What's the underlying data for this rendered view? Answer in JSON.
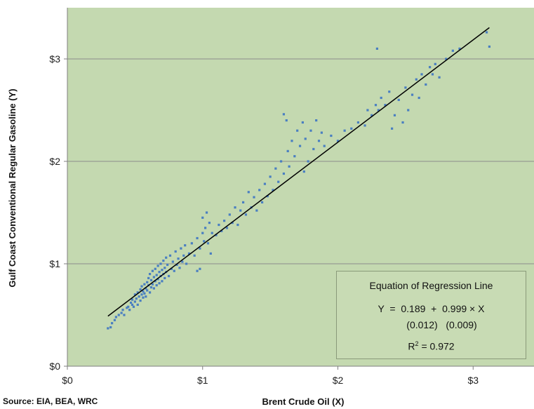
{
  "chart_data": {
    "type": "scatter",
    "title": "",
    "xlabel": "Brent Crude Oil (X)",
    "ylabel": "Gulf Coast Conventional Regular Gasoline (Y)",
    "xlim": [
      0,
      3.45
    ],
    "ylim": [
      0,
      3.5
    ],
    "x_ticks": [
      0,
      1,
      2,
      3
    ],
    "y_ticks": [
      0,
      1,
      2,
      3
    ],
    "x_tick_labels": [
      "$0",
      "$1",
      "$2",
      "$3"
    ],
    "y_tick_labels": [
      "$0",
      "$1",
      "$2",
      "$3"
    ],
    "grid": "horizontal",
    "plot_background": "#c4d9b0",
    "point_color": "#4a7fc1",
    "line_color": "#000000",
    "regression": {
      "intercept": 0.189,
      "slope": 0.999,
      "x_range": [
        0.3,
        3.12
      ]
    },
    "points": [
      [
        0.3,
        0.37
      ],
      [
        0.32,
        0.38
      ],
      [
        0.33,
        0.42
      ],
      [
        0.35,
        0.45
      ],
      [
        0.36,
        0.48
      ],
      [
        0.38,
        0.5
      ],
      [
        0.4,
        0.52
      ],
      [
        0.41,
        0.55
      ],
      [
        0.42,
        0.5
      ],
      [
        0.44,
        0.57
      ],
      [
        0.45,
        0.58
      ],
      [
        0.46,
        0.55
      ],
      [
        0.47,
        0.62
      ],
      [
        0.48,
        0.6
      ],
      [
        0.48,
        0.65
      ],
      [
        0.49,
        0.58
      ],
      [
        0.5,
        0.63
      ],
      [
        0.5,
        0.7
      ],
      [
        0.51,
        0.66
      ],
      [
        0.52,
        0.72
      ],
      [
        0.52,
        0.6
      ],
      [
        0.53,
        0.68
      ],
      [
        0.54,
        0.75
      ],
      [
        0.54,
        0.64
      ],
      [
        0.55,
        0.7
      ],
      [
        0.55,
        0.78
      ],
      [
        0.56,
        0.67
      ],
      [
        0.56,
        0.73
      ],
      [
        0.57,
        0.8
      ],
      [
        0.57,
        0.71
      ],
      [
        0.58,
        0.76
      ],
      [
        0.58,
        0.68
      ],
      [
        0.59,
        0.82
      ],
      [
        0.59,
        0.74
      ],
      [
        0.6,
        0.79
      ],
      [
        0.6,
        0.86
      ],
      [
        0.61,
        0.72
      ],
      [
        0.61,
        0.9
      ],
      [
        0.62,
        0.77
      ],
      [
        0.62,
        0.84
      ],
      [
        0.63,
        0.93
      ],
      [
        0.63,
        0.8
      ],
      [
        0.64,
        0.87
      ],
      [
        0.64,
        0.76
      ],
      [
        0.65,
        0.95
      ],
      [
        0.65,
        0.83
      ],
      [
        0.66,
        0.89
      ],
      [
        0.66,
        0.79
      ],
      [
        0.67,
        0.98
      ],
      [
        0.67,
        0.85
      ],
      [
        0.68,
        0.92
      ],
      [
        0.68,
        0.81
      ],
      [
        0.69,
        1.0
      ],
      [
        0.69,
        0.88
      ],
      [
        0.7,
        0.94
      ],
      [
        0.7,
        0.83
      ],
      [
        0.71,
        1.03
      ],
      [
        0.71,
        0.9
      ],
      [
        0.72,
        0.96
      ],
      [
        0.72,
        0.86
      ],
      [
        0.73,
        1.06
      ],
      [
        0.73,
        0.92
      ],
      [
        0.74,
        0.99
      ],
      [
        0.75,
        0.88
      ],
      [
        0.76,
        1.08
      ],
      [
        0.77,
        0.95
      ],
      [
        0.78,
        1.02
      ],
      [
        0.79,
        0.93
      ],
      [
        0.8,
        1.12
      ],
      [
        0.81,
        0.99
      ],
      [
        0.82,
        1.05
      ],
      [
        0.83,
        0.96
      ],
      [
        0.84,
        1.15
      ],
      [
        0.85,
        1.02
      ],
      [
        0.86,
        1.08
      ],
      [
        0.87,
        1.18
      ],
      [
        0.88,
        1.0
      ],
      [
        0.9,
        1.1
      ],
      [
        0.92,
        1.2
      ],
      [
        0.94,
        1.08
      ],
      [
        0.96,
        1.25
      ],
      [
        0.98,
        1.15
      ],
      [
        1.0,
        1.3
      ],
      [
        1.0,
        1.45
      ],
      [
        1.01,
        1.22
      ],
      [
        1.02,
        1.35
      ],
      [
        1.03,
        1.5
      ],
      [
        1.04,
        1.2
      ],
      [
        1.05,
        1.4
      ],
      [
        1.06,
        1.1
      ],
      [
        1.07,
        1.3
      ],
      [
        0.98,
        0.95
      ],
      [
        0.96,
        0.93
      ],
      [
        1.1,
        1.28
      ],
      [
        1.12,
        1.38
      ],
      [
        1.14,
        1.32
      ],
      [
        1.16,
        1.42
      ],
      [
        1.18,
        1.35
      ],
      [
        1.2,
        1.48
      ],
      [
        1.22,
        1.4
      ],
      [
        1.24,
        1.55
      ],
      [
        1.26,
        1.38
      ],
      [
        1.28,
        1.52
      ],
      [
        1.3,
        1.6
      ],
      [
        1.32,
        1.48
      ],
      [
        1.34,
        1.7
      ],
      [
        1.36,
        1.55
      ],
      [
        1.38,
        1.65
      ],
      [
        1.4,
        1.52
      ],
      [
        1.42,
        1.72
      ],
      [
        1.44,
        1.6
      ],
      [
        1.46,
        1.78
      ],
      [
        1.48,
        1.66
      ],
      [
        1.5,
        1.85
      ],
      [
        1.52,
        1.72
      ],
      [
        1.54,
        1.93
      ],
      [
        1.56,
        1.8
      ],
      [
        1.58,
        2.0
      ],
      [
        1.6,
        1.88
      ],
      [
        1.6,
        2.46
      ],
      [
        1.62,
        2.4
      ],
      [
        1.63,
        2.1
      ],
      [
        1.64,
        1.95
      ],
      [
        1.66,
        2.2
      ],
      [
        1.68,
        2.05
      ],
      [
        1.7,
        2.3
      ],
      [
        1.72,
        2.15
      ],
      [
        1.74,
        2.38
      ],
      [
        1.75,
        1.9
      ],
      [
        1.76,
        2.22
      ],
      [
        1.78,
        2.0
      ],
      [
        1.8,
        2.3
      ],
      [
        1.82,
        2.12
      ],
      [
        1.84,
        2.4
      ],
      [
        1.86,
        2.2
      ],
      [
        1.88,
        2.28
      ],
      [
        1.9,
        2.15
      ],
      [
        1.95,
        2.25
      ],
      [
        2.0,
        2.2
      ],
      [
        2.05,
        2.3
      ],
      [
        2.1,
        2.32
      ],
      [
        2.15,
        2.38
      ],
      [
        2.2,
        2.35
      ],
      [
        2.22,
        2.5
      ],
      [
        2.25,
        2.45
      ],
      [
        2.28,
        2.55
      ],
      [
        2.29,
        3.1
      ],
      [
        2.3,
        2.5
      ],
      [
        2.32,
        2.62
      ],
      [
        2.35,
        2.55
      ],
      [
        2.38,
        2.68
      ],
      [
        2.4,
        2.32
      ],
      [
        2.42,
        2.45
      ],
      [
        2.45,
        2.6
      ],
      [
        2.48,
        2.38
      ],
      [
        2.5,
        2.72
      ],
      [
        2.52,
        2.5
      ],
      [
        2.55,
        2.65
      ],
      [
        2.58,
        2.8
      ],
      [
        2.6,
        2.62
      ],
      [
        2.62,
        2.85
      ],
      [
        2.65,
        2.75
      ],
      [
        2.68,
        2.92
      ],
      [
        2.7,
        2.85
      ],
      [
        2.72,
        2.95
      ],
      [
        2.75,
        2.82
      ],
      [
        2.8,
        3.0
      ],
      [
        2.85,
        3.08
      ],
      [
        2.9,
        3.1
      ],
      [
        3.1,
        3.26
      ],
      [
        3.12,
        3.12
      ]
    ]
  },
  "source_text": "Source: EIA, BEA, WRC",
  "equation_box": {
    "title": "Equation of Regression Line",
    "equation": "Y  =  0.189  +  0.999 × X",
    "std_errors": "(0.012)   (0.009)",
    "r2_prefix": "R",
    "r2_sup": "2",
    "r2_value": " = 0.972"
  }
}
